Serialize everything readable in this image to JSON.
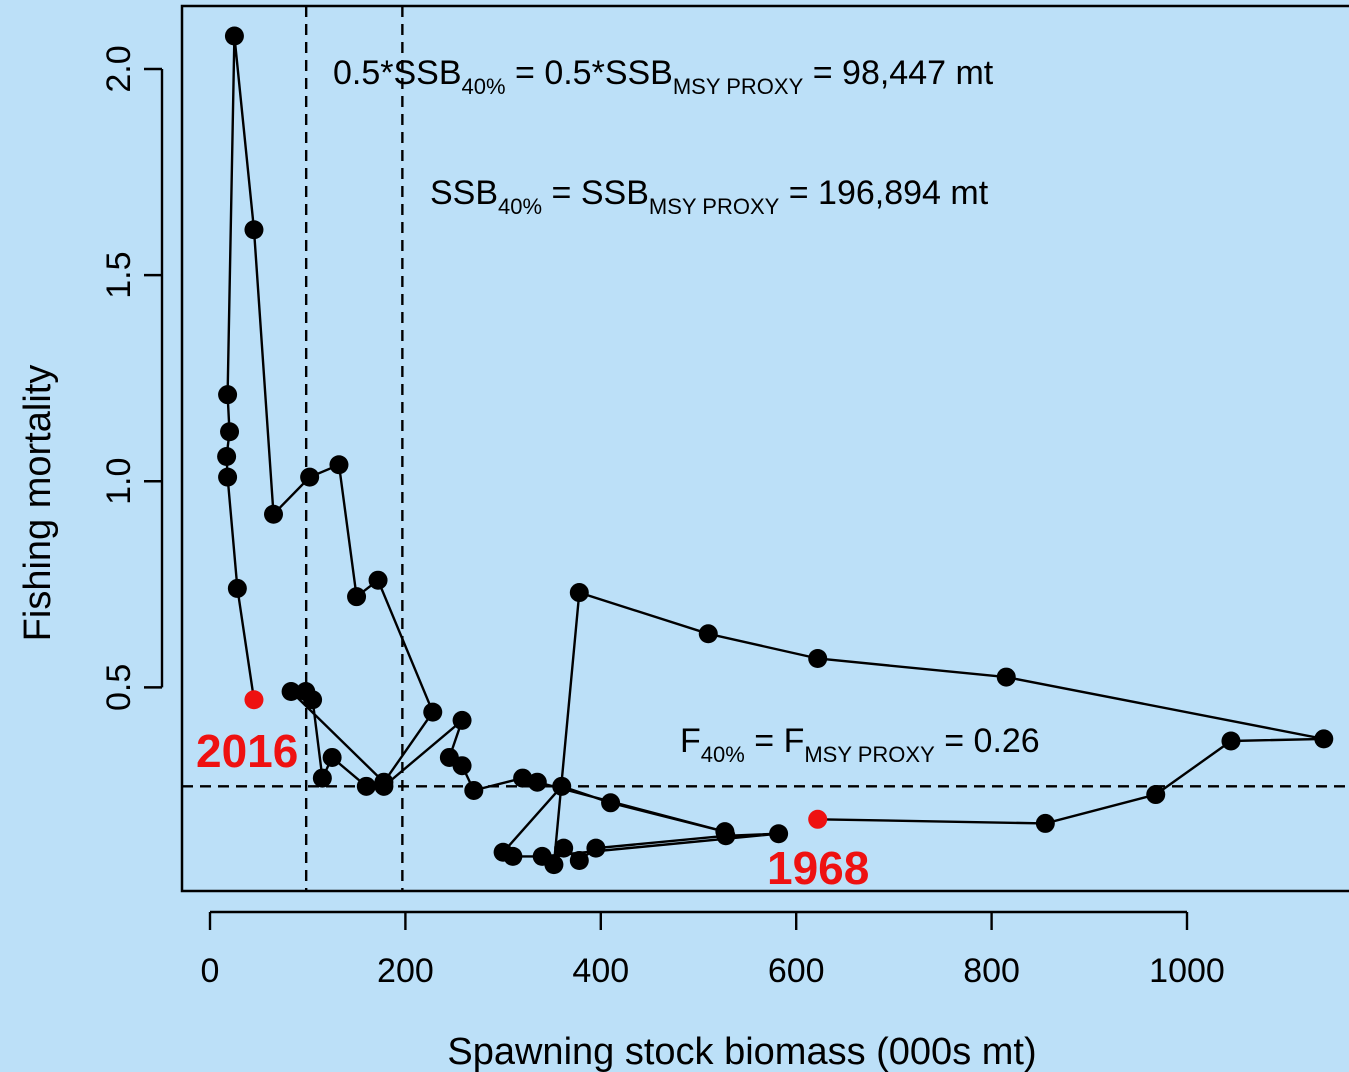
{
  "chart_data": {
    "type": "scatter",
    "xlabel": "Spawning stock biomass (000s mt)",
    "ylabel": "Fishing mortality",
    "xlim": [
      -15,
      1160
    ],
    "ylim": [
      0,
      2.15
    ],
    "xticks": [
      "0",
      "200",
      "400",
      "600",
      "800",
      "1000"
    ],
    "yticks": [
      "0.5",
      "1.0",
      "1.5",
      "2.0"
    ],
    "xtick_values": [
      0,
      200,
      400,
      600,
      800,
      1000
    ],
    "ytick_values": [
      0.5,
      1.0,
      1.5,
      2.0
    ],
    "reference_lines": {
      "vertical": [
        98.447,
        196.894
      ],
      "horizontal": [
        0.26
      ]
    },
    "annotations": {
      "half_ssb": {
        "pre": "0.5*SSB",
        "sub1": "40%",
        "mid": " = 0.5*SSB",
        "sub2": "MSY PROXY",
        "post": " = 98,447 mt"
      },
      "ssb": {
        "pre": "SSB",
        "sub1": "40%",
        "mid": " = SSB",
        "sub2": "MSY PROXY",
        "post": " = 196,894 mt"
      },
      "fmsy": {
        "pre": "F",
        "sub1": "40%",
        "mid": " = F",
        "sub2": "MSY PROXY",
        "post": " = 0.26"
      }
    },
    "start_label": "1968",
    "end_label": "2016",
    "highlight_color": "#ee1111",
    "series_color": "#000000",
    "points": [
      [
        622,
        0.18
      ],
      [
        855,
        0.17
      ],
      [
        968,
        0.24
      ],
      [
        1045,
        0.37
      ],
      [
        1140,
        0.375
      ],
      [
        815,
        0.525
      ],
      [
        622,
        0.57
      ],
      [
        510,
        0.63
      ],
      [
        378,
        0.73
      ],
      [
        352,
        0.07
      ],
      [
        362,
        0.11
      ],
      [
        378,
        0.08
      ],
      [
        395,
        0.11
      ],
      [
        528,
        0.14
      ],
      [
        582,
        0.145
      ],
      [
        340,
        0.09
      ],
      [
        310,
        0.09
      ],
      [
        300,
        0.1
      ],
      [
        360,
        0.26
      ],
      [
        410,
        0.22
      ],
      [
        527,
        0.15
      ],
      [
        335,
        0.27
      ],
      [
        320,
        0.28
      ],
      [
        270,
        0.25
      ],
      [
        258,
        0.31
      ],
      [
        245,
        0.33
      ],
      [
        258,
        0.42
      ],
      [
        178,
        0.26
      ],
      [
        160,
        0.26
      ],
      [
        125,
        0.33
      ],
      [
        115,
        0.28
      ],
      [
        105,
        0.47
      ],
      [
        98,
        0.49
      ],
      [
        83,
        0.49
      ],
      [
        178,
        0.27
      ],
      [
        228,
        0.44
      ],
      [
        172,
        0.76
      ],
      [
        150,
        0.72
      ],
      [
        132,
        1.04
      ],
      [
        102,
        1.01
      ],
      [
        65,
        0.92
      ],
      [
        45,
        1.61
      ],
      [
        25,
        2.08
      ],
      [
        18,
        1.21
      ],
      [
        20,
        1.12
      ],
      [
        17,
        1.06
      ],
      [
        18,
        1.01
      ],
      [
        28,
        0.74
      ],
      [
        45,
        0.47
      ]
    ]
  }
}
